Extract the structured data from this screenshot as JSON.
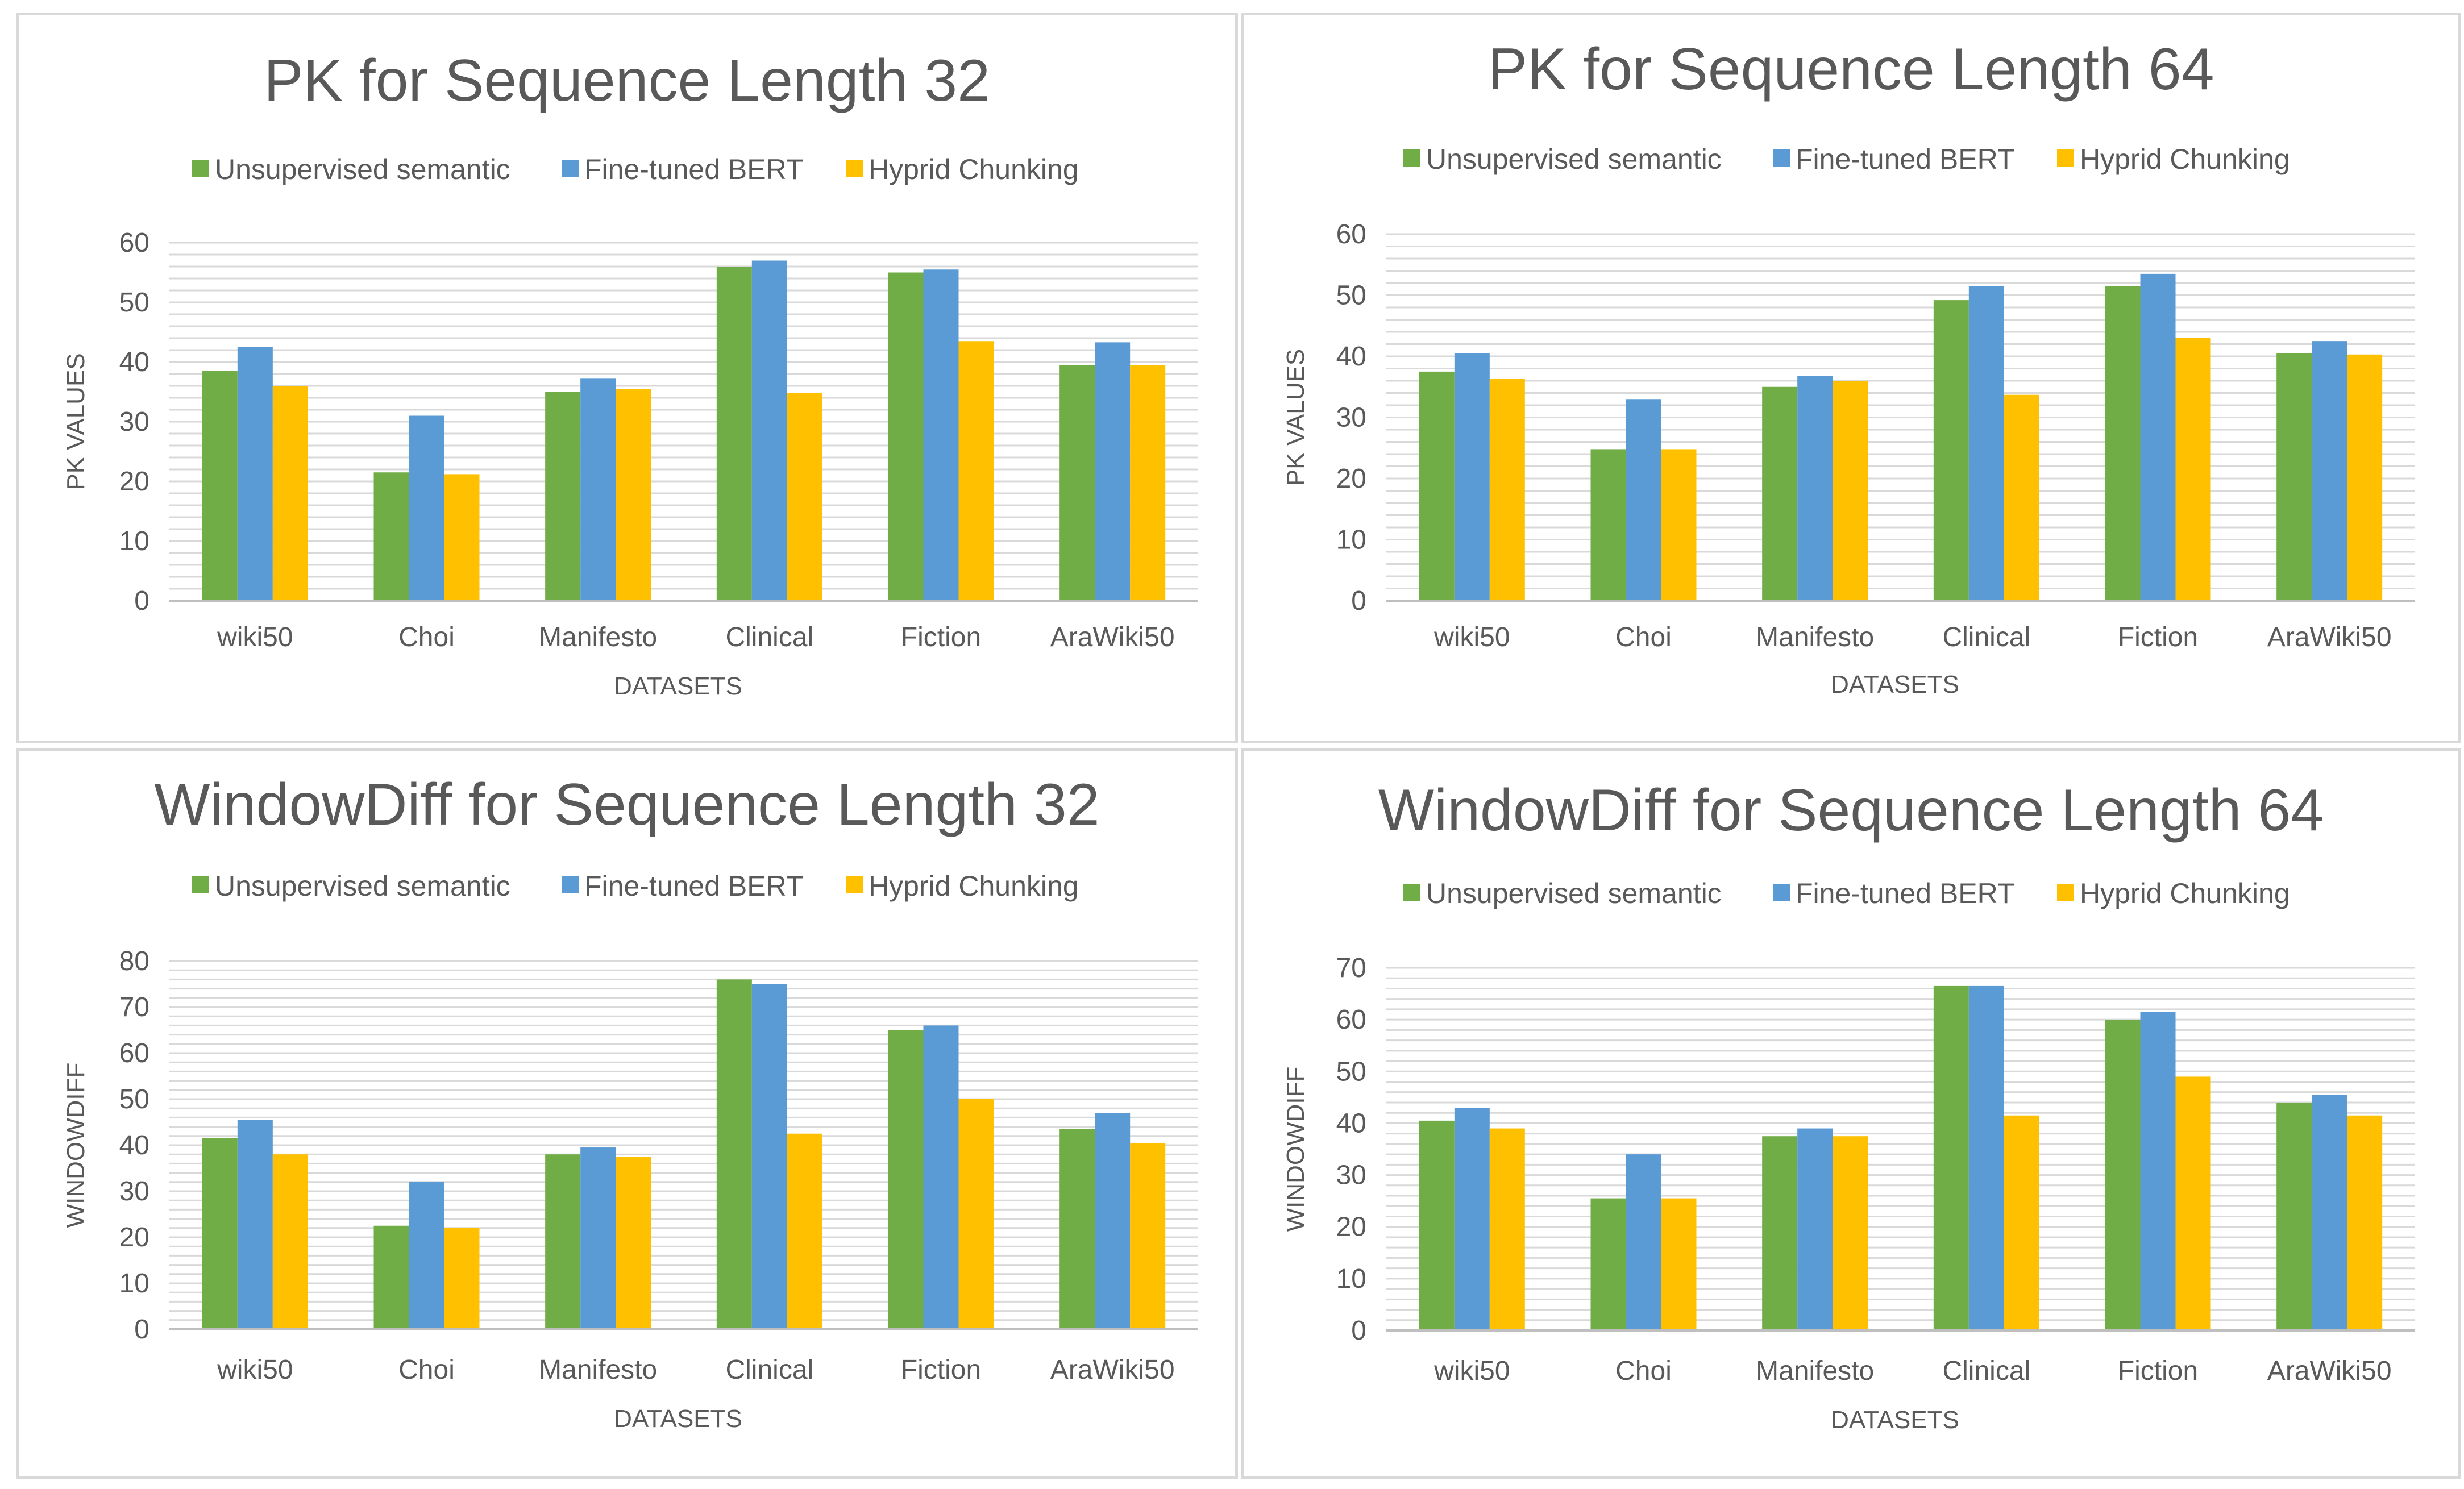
{
  "colors": {
    "green": "#70ad47",
    "blue": "#5b9bd5",
    "yellow": "#ffc000"
  },
  "chart_data": [
    {
      "type": "bar",
      "title": "PK  for Sequence Length 32",
      "xlabel": "DATASETS",
      "ylabel": "PK VALUES",
      "categories": [
        "wiki50",
        "Choi",
        "Manifesto",
        "Clinical",
        "Fiction",
        "AraWiki50"
      ],
      "ylim": [
        0,
        60
      ],
      "yticks": [
        0,
        10,
        20,
        30,
        40,
        50,
        60
      ],
      "legend_position": "top",
      "series": [
        {
          "name": "Unsupervised semantic",
          "color": "#70ad47",
          "values": [
            38.5,
            21.5,
            35,
            56,
            55,
            39.5
          ]
        },
        {
          "name": "Fine-tuned BERT",
          "color": "#5b9bd5",
          "values": [
            42.5,
            31,
            37.3,
            57,
            55.5,
            43.3
          ]
        },
        {
          "name": "Hyprid Chunking",
          "color": "#ffc000",
          "values": [
            36,
            21.2,
            35.5,
            34.8,
            43.5,
            39.5
          ]
        }
      ]
    },
    {
      "type": "bar",
      "title": "PK  for Sequence Length 64",
      "xlabel": "DATASETS",
      "ylabel": "PK VALUES",
      "categories": [
        "wiki50",
        "Choi",
        "Manifesto",
        "Clinical",
        "Fiction",
        "AraWiki50"
      ],
      "ylim": [
        0,
        60
      ],
      "yticks": [
        0,
        10,
        20,
        30,
        40,
        50,
        60
      ],
      "legend_position": "top",
      "series": [
        {
          "name": "Unsupervised semantic",
          "color": "#70ad47",
          "values": [
            37.5,
            24.8,
            35,
            49.2,
            51.5,
            40.5
          ]
        },
        {
          "name": "Fine-tuned BERT",
          "color": "#5b9bd5",
          "values": [
            40.5,
            33,
            36.8,
            51.5,
            53.5,
            42.5
          ]
        },
        {
          "name": "Hyprid Chunking",
          "color": "#ffc000",
          "values": [
            36.3,
            24.8,
            36,
            33.7,
            43,
            40.3
          ]
        }
      ]
    },
    {
      "type": "bar",
      "title": "WindowDiff  for Sequence Length 32",
      "xlabel": "DATASETS",
      "ylabel": "WINDOWDIFF",
      "categories": [
        "wiki50",
        "Choi",
        "Manifesto",
        "Clinical",
        "Fiction",
        "AraWiki50"
      ],
      "ylim": [
        0,
        80
      ],
      "yticks": [
        0,
        10,
        20,
        30,
        40,
        50,
        60,
        70,
        80
      ],
      "legend_position": "top",
      "series": [
        {
          "name": "Unsupervised semantic",
          "color": "#70ad47",
          "values": [
            41.5,
            22.5,
            38,
            76,
            65,
            43.5
          ]
        },
        {
          "name": "Fine-tuned BERT",
          "color": "#5b9bd5",
          "values": [
            45.5,
            32,
            39.5,
            75,
            66,
            47
          ]
        },
        {
          "name": "Hyprid Chunking",
          "color": "#ffc000",
          "values": [
            38,
            22,
            37.5,
            42.5,
            50,
            40.5
          ]
        }
      ]
    },
    {
      "type": "bar",
      "title": "WindowDiff  for Sequence Length 64",
      "xlabel": "DATASETS",
      "ylabel": "WINDOWDIFF",
      "categories": [
        "wiki50",
        "Choi",
        "Manifesto",
        "Clinical",
        "Fiction",
        "AraWiki50"
      ],
      "ylim": [
        0,
        70
      ],
      "yticks": [
        0,
        10,
        20,
        30,
        40,
        50,
        60,
        70
      ],
      "legend_position": "top",
      "series": [
        {
          "name": "Unsupervised semantic",
          "color": "#70ad47",
          "values": [
            40.5,
            25.5,
            37.5,
            66.5,
            60,
            44
          ]
        },
        {
          "name": "Fine-tuned BERT",
          "color": "#5b9bd5",
          "values": [
            43,
            34,
            39,
            66.5,
            61.5,
            45.5
          ]
        },
        {
          "name": "Hyprid Chunking",
          "color": "#ffc000",
          "values": [
            39,
            25.5,
            37.5,
            41.5,
            49,
            41.5
          ]
        }
      ]
    }
  ]
}
